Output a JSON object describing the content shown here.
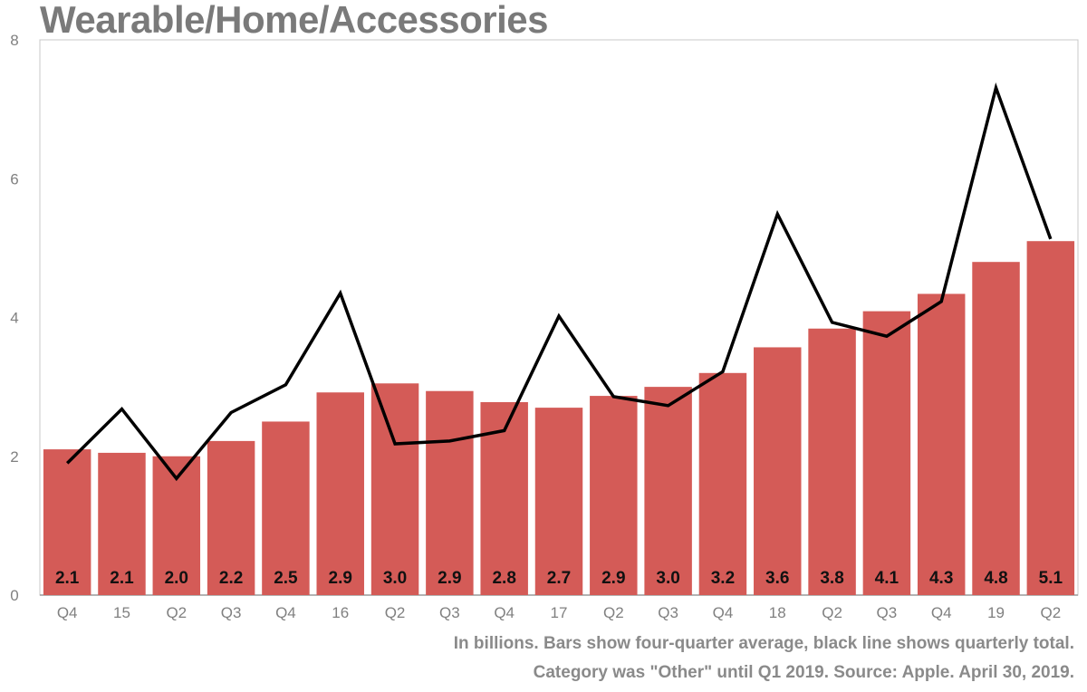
{
  "title": "Wearable/Home/Accessories",
  "notes": {
    "line1": "In billions. Bars show four-quarter average, black line shows quarterly total.",
    "line2": "Category was \"Other\" until Q1 2019.  Source: Apple. April 30, 2019."
  },
  "chart_data": {
    "type": "bar",
    "title": "Wearable/Home/Accessories",
    "xlabel": "",
    "ylabel": "",
    "ylim": [
      0,
      8
    ],
    "yticks": [
      0,
      2,
      4,
      6,
      8
    ],
    "grid": false,
    "categories": [
      "Q4",
      "15",
      "Q2",
      "Q3",
      "Q4",
      "16",
      "Q2",
      "Q3",
      "Q4",
      "17",
      "Q2",
      "Q3",
      "Q4",
      "18",
      "Q2",
      "Q3",
      "Q4",
      "19",
      "Q2"
    ],
    "series": [
      {
        "type": "bar",
        "color": "#d45b57",
        "values": [
          2.1,
          2.05,
          2.0,
          2.22,
          2.5,
          2.92,
          3.05,
          2.94,
          2.78,
          2.7,
          2.87,
          3.0,
          3.2,
          3.57,
          3.84,
          4.09,
          4.34,
          4.8,
          5.1
        ],
        "data_labels": [
          "2.1",
          "2.1",
          "2.0",
          "2.2",
          "2.5",
          "2.9",
          "3.0",
          "2.9",
          "2.8",
          "2.7",
          "2.9",
          "3.0",
          "3.2",
          "3.6",
          "3.8",
          "4.1",
          "4.3",
          "4.8",
          "5.1"
        ]
      },
      {
        "type": "line",
        "color": "#000000",
        "values": [
          1.9,
          2.68,
          1.68,
          2.63,
          3.03,
          4.35,
          2.18,
          2.22,
          2.37,
          4.02,
          2.86,
          2.73,
          3.22,
          5.49,
          3.93,
          3.73,
          4.23,
          7.31,
          5.13
        ]
      }
    ]
  }
}
